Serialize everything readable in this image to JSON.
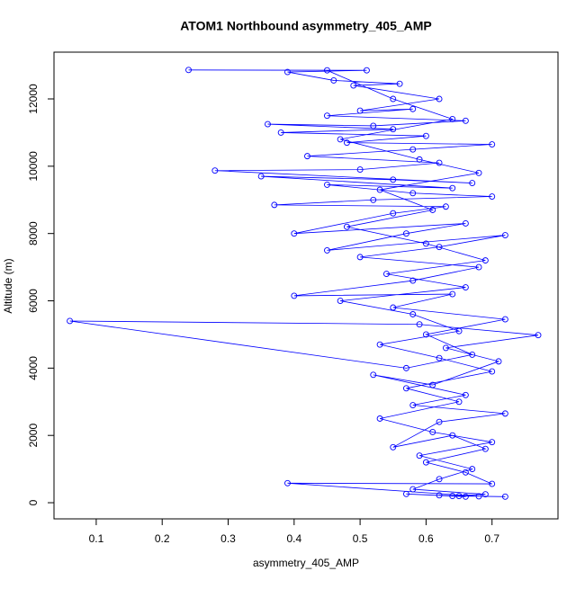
{
  "chart_data": {
    "type": "line",
    "marker": "open-circle",
    "title": "ATOM1 Northbound asymmetry_405_AMP",
    "xlabel": "asymmetry_405_AMP",
    "ylabel": "Altitude (m)",
    "color": "#0000ff",
    "xlim": [
      0.036,
      0.8
    ],
    "ylim": [
      -480,
      13390
    ],
    "xticks": [
      0.1,
      0.2,
      0.3,
      0.4,
      0.5,
      0.6,
      0.7
    ],
    "yticks": [
      0,
      2000,
      4000,
      6000,
      8000,
      10000,
      12000
    ],
    "x": [
      0.72,
      0.65,
      0.62,
      0.68,
      0.39,
      0.7,
      0.66,
      0.6,
      0.69,
      0.64,
      0.55,
      0.62,
      0.72,
      0.58,
      0.66,
      0.52,
      0.61,
      0.71,
      0.63,
      0.77,
      0.59,
      0.06,
      0.57,
      0.67,
      0.6,
      0.72,
      0.55,
      0.64,
      0.4,
      0.58,
      0.68,
      0.5,
      0.62,
      0.72,
      0.45,
      0.57,
      0.66,
      0.4,
      0.55,
      0.63,
      0.37,
      0.52,
      0.7,
      0.58,
      0.45,
      0.64,
      0.35,
      0.55,
      0.67,
      0.28,
      0.5,
      0.62,
      0.42,
      0.58,
      0.7,
      0.48,
      0.6,
      0.38,
      0.55,
      0.36,
      0.52,
      0.66,
      0.45,
      0.58,
      0.5,
      0.62,
      0.49,
      0.56,
      0.46,
      0.39,
      0.51,
      0.24,
      0.45,
      0.55,
      0.64,
      0.47,
      0.59,
      0.68,
      0.53,
      0.61,
      0.48,
      0.6,
      0.69,
      0.54,
      0.66,
      0.47,
      0.58,
      0.65,
      0.53,
      0.62,
      0.7,
      0.57,
      0.65,
      0.53,
      0.61,
      0.7,
      0.59,
      0.67,
      0.62,
      0.58,
      0.69,
      0.64,
      0.57,
      0.66
    ],
    "values": [
      180,
      200,
      220,
      190,
      580,
      560,
      900,
      1200,
      1600,
      2000,
      1650,
      2400,
      2650,
      2900,
      3200,
      3800,
      3500,
      4200,
      4600,
      4980,
      5300,
      5400,
      4000,
      4400,
      5000,
      5450,
      5800,
      6200,
      6150,
      6600,
      7000,
      7300,
      7600,
      7950,
      7500,
      8000,
      8300,
      8000,
      8600,
      8800,
      8850,
      9000,
      9100,
      9200,
      9450,
      9350,
      9700,
      9600,
      9500,
      9870,
      9900,
      10100,
      10300,
      10500,
      10650,
      10700,
      10900,
      11000,
      11100,
      11250,
      11200,
      11350,
      11500,
      11700,
      11650,
      12000,
      12400,
      12450,
      12550,
      12800,
      12850,
      12860,
      12850,
      12000,
      11400,
      10800,
      10200,
      9800,
      9300,
      8700,
      8200,
      7700,
      7200,
      6800,
      6400,
      6000,
      5600,
      5100,
      4700,
      4300,
      3900,
      3400,
      3000,
      2500,
      2100,
      1800,
      1400,
      1000,
      700,
      400,
      250,
      200,
      260,
      180
    ]
  }
}
